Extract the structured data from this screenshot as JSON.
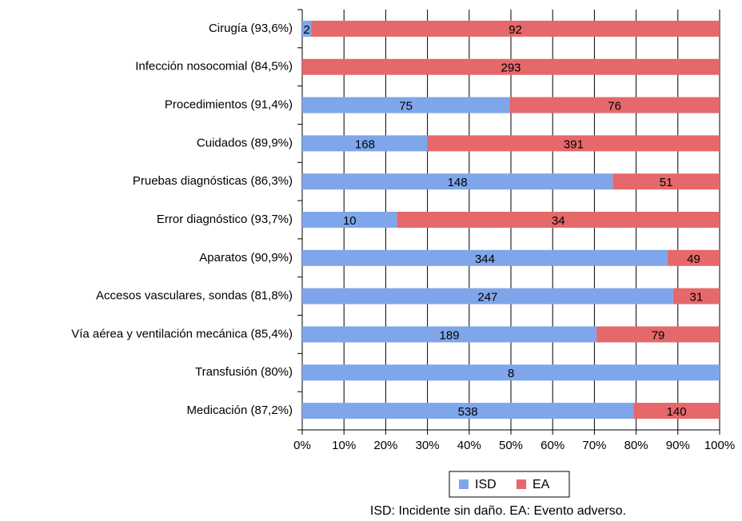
{
  "chart_data": {
    "type": "bar",
    "orientation": "horizontal",
    "stacking": "percent",
    "categories": [
      "Cirugía (93,6%)",
      "Infección nosocomial (84,5%)",
      "Procedimientos (91,4%)",
      "Cuidados (89,9%)",
      "Pruebas diagnósticas (86,3%)",
      "Error diagnóstico (93,7%)",
      "Aparatos (90,9%)",
      "Accesos vasculares, sondas (81,8%)",
      "Vía aérea y ventilación mecánica (85,4%)",
      "Transfusión (80%)",
      "Medicación (87,2%)"
    ],
    "series": [
      {
        "name": "ISD",
        "color": "#7fa6ea",
        "values": [
          2,
          0,
          75,
          168,
          148,
          10,
          344,
          247,
          189,
          8,
          538
        ]
      },
      {
        "name": "EA",
        "color": "#e5686a",
        "values": [
          92,
          293,
          76,
          391,
          51,
          34,
          49,
          31,
          79,
          0,
          140
        ]
      }
    ],
    "xlim": [
      0,
      100
    ],
    "xticks": [
      {
        "value": 0,
        "label": "0%"
      },
      {
        "value": 10,
        "label": "10%"
      },
      {
        "value": 20,
        "label": "20%"
      },
      {
        "value": 30,
        "label": "30%"
      },
      {
        "value": 40,
        "label": "40%"
      },
      {
        "value": 50,
        "label": "50%"
      },
      {
        "value": 60,
        "label": "60%"
      },
      {
        "value": 70,
        "label": "70%"
      },
      {
        "value": 80,
        "label": "80%"
      },
      {
        "value": 90,
        "label": "90%"
      },
      {
        "value": 100,
        "label": "100%"
      }
    ],
    "grid": true,
    "legend": "bottom",
    "note": "ISD: Incidente sin daño. EA: Evento adverso."
  }
}
